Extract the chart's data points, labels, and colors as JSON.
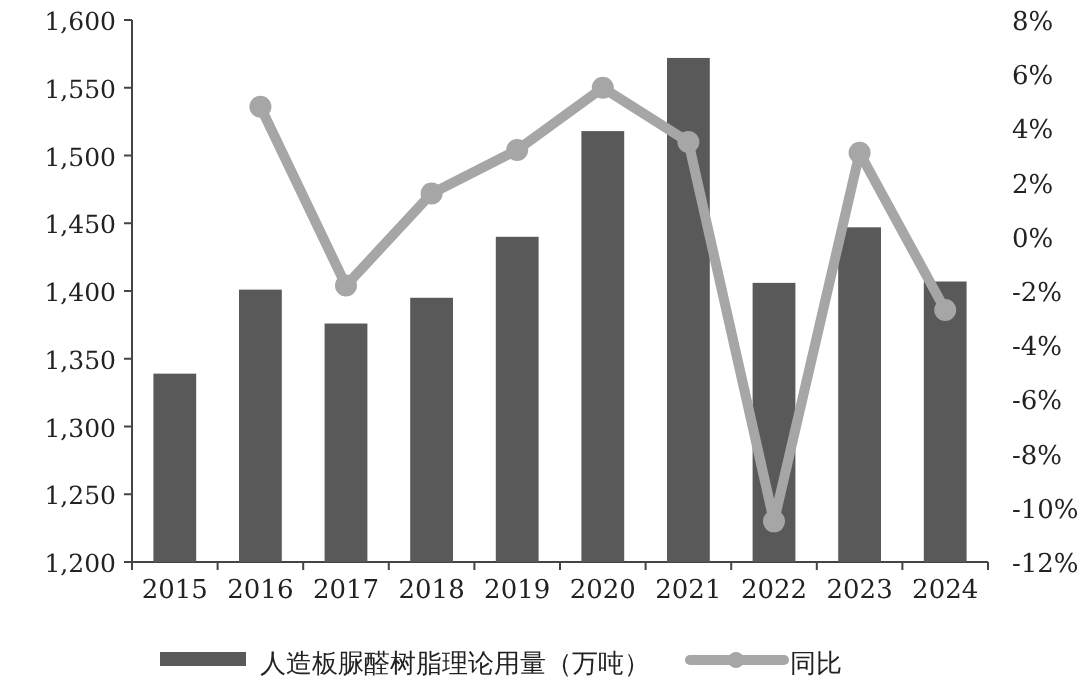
{
  "chart_data": {
    "type": "bar",
    "categories": [
      "2015",
      "2016",
      "2017",
      "2018",
      "2019",
      "2020",
      "2021",
      "2022",
      "2023",
      "2024"
    ],
    "series": [
      {
        "name": "人造板脲醛树脂理论用量（万吨）",
        "color": "#595959",
        "values": [
          1339,
          1401,
          1376,
          1395,
          1440,
          1518,
          1572,
          1406,
          1447,
          1407
        ]
      },
      {
        "name": "同比",
        "type": "line",
        "axis": "y2",
        "color": "#a6a6a6",
        "marker": "circle",
        "values": [
          null,
          4.8,
          -1.8,
          1.6,
          3.2,
          5.5,
          3.5,
          -10.5,
          3.1,
          -2.7
        ]
      }
    ],
    "ylim": [
      1200,
      1600
    ],
    "yticks": [
      {
        "value": 1200,
        "label": "1,200"
      },
      {
        "value": 1250,
        "label": "1,250"
      },
      {
        "value": 1300,
        "label": "1,300"
      },
      {
        "value": 1350,
        "label": "1,350"
      },
      {
        "value": 1400,
        "label": "1,400"
      },
      {
        "value": 1450,
        "label": "1,450"
      },
      {
        "value": 1500,
        "label": "1,500"
      },
      {
        "value": 1550,
        "label": "1,550"
      },
      {
        "value": 1600,
        "label": "1,600"
      }
    ],
    "y2lim": [
      -12,
      8
    ],
    "y2ticks": [
      {
        "value": -12,
        "label": "-12%"
      },
      {
        "value": -10,
        "label": "-10%"
      },
      {
        "value": -8,
        "label": "-8%"
      },
      {
        "value": -6,
        "label": "-6%"
      },
      {
        "value": -4,
        "label": "-4%"
      },
      {
        "value": -2,
        "label": "-2%"
      },
      {
        "value": 0,
        "label": "0%"
      },
      {
        "value": 2,
        "label": "2%"
      },
      {
        "value": 4,
        "label": "4%"
      },
      {
        "value": 6,
        "label": "6%"
      },
      {
        "value": 8,
        "label": "8%"
      }
    ],
    "grid": false,
    "legend": "bottom"
  }
}
